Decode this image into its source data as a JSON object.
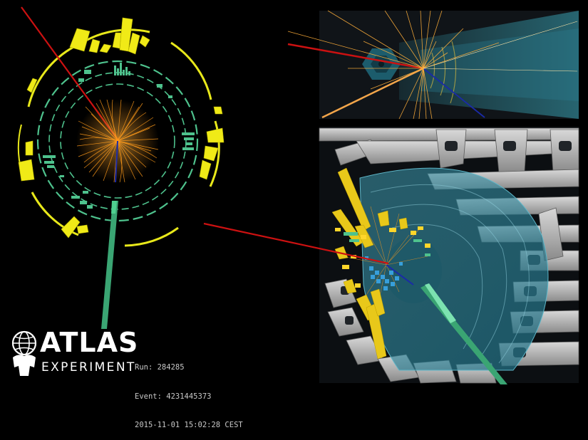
{
  "logo": {
    "wordmark": "ATLAS",
    "subtitle": "EXPERIMENT"
  },
  "event": {
    "run": "Run: 284285",
    "event": "Event: 4231445373",
    "timestamp": "2015-11-01 15:02:28 CEST"
  },
  "colors": {
    "background": "#000000",
    "tracks": "#ff9a1a",
    "muon": "#3aa573",
    "electron": "#cc1111",
    "neutrino": "#1a2aa8",
    "calo_em": "#e8e81a",
    "calo_had": "#4ec28d",
    "detector_blue": "#2e8fa5"
  }
}
